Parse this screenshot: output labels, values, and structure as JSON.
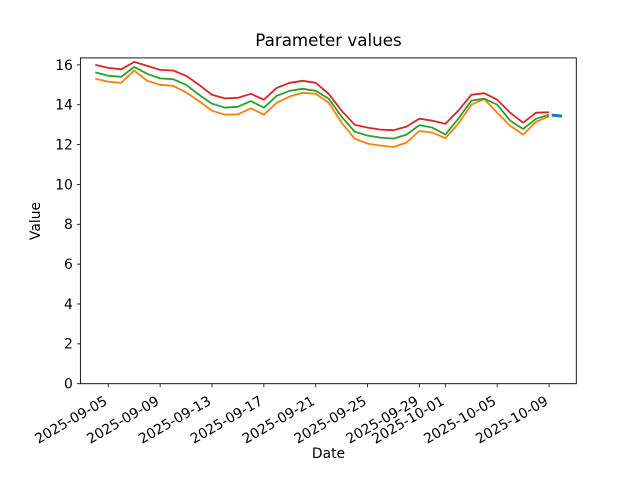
{
  "chart_data": {
    "type": "line",
    "title": "Parameter values",
    "xlabel": "Date",
    "ylabel": "Value",
    "grid": false,
    "legend": null,
    "background_color": "#ffffff",
    "ylim": [
      0,
      16.35
    ],
    "xlim_days": [
      -1.15,
      37.1
    ],
    "yticks": [
      {
        "label": "0",
        "value": 0
      },
      {
        "label": "2",
        "value": 2
      },
      {
        "label": "4",
        "value": 4
      },
      {
        "label": "6",
        "value": 6
      },
      {
        "label": "8",
        "value": 8
      },
      {
        "label": "10",
        "value": 10
      },
      {
        "label": "12",
        "value": 12
      },
      {
        "label": "14",
        "value": 14
      },
      {
        "label": "16",
        "value": 16
      }
    ],
    "xticks": [
      {
        "label": "2025-09-05",
        "day": 1
      },
      {
        "label": "2025-09-09",
        "day": 5
      },
      {
        "label": "2025-09-13",
        "day": 9
      },
      {
        "label": "2025-09-17",
        "day": 13
      },
      {
        "label": "2025-09-21",
        "day": 17
      },
      {
        "label": "2025-09-25",
        "day": 21
      },
      {
        "label": "2025-09-29",
        "day": 25
      },
      {
        "label": "2025-10-01",
        "day": 27
      },
      {
        "label": "2025-10-05",
        "day": 31
      },
      {
        "label": "2025-10-09",
        "day": 35
      }
    ],
    "dates": [
      "2025-09-04",
      "2025-09-05",
      "2025-09-06",
      "2025-09-07",
      "2025-09-08",
      "2025-09-09",
      "2025-09-10",
      "2025-09-11",
      "2025-09-12",
      "2025-09-13",
      "2025-09-14",
      "2025-09-15",
      "2025-09-16",
      "2025-09-17",
      "2025-09-18",
      "2025-09-19",
      "2025-09-20",
      "2025-09-21",
      "2025-09-22",
      "2025-09-23",
      "2025-09-24",
      "2025-09-25",
      "2025-09-26",
      "2025-09-27",
      "2025-09-28",
      "2025-09-29",
      "2025-09-30",
      "2025-10-01",
      "2025-10-02",
      "2025-10-03",
      "2025-10-04",
      "2025-10-05",
      "2025-10-06",
      "2025-10-07",
      "2025-10-08",
      "2025-10-09"
    ],
    "series": [
      {
        "name": "series-orange",
        "color": "#ff7f0e",
        "line_width": 1.8,
        "values": [
          15.3,
          15.15,
          15.1,
          15.72,
          15.2,
          15.0,
          14.95,
          14.62,
          14.18,
          13.7,
          13.5,
          13.52,
          13.82,
          13.5,
          14.1,
          14.42,
          14.6,
          14.55,
          14.1,
          13.1,
          12.3,
          12.05,
          11.95,
          11.88,
          12.1,
          12.68,
          12.6,
          12.32,
          13.05,
          14.0,
          14.28,
          13.6,
          12.95,
          12.5,
          13.15,
          13.42
        ]
      },
      {
        "name": "series-green",
        "color": "#2ca02c",
        "line_width": 1.8,
        "values": [
          15.62,
          15.45,
          15.4,
          15.9,
          15.55,
          15.32,
          15.28,
          15.0,
          14.5,
          14.05,
          13.85,
          13.9,
          14.18,
          13.85,
          14.45,
          14.7,
          14.8,
          14.7,
          14.3,
          13.4,
          12.65,
          12.45,
          12.35,
          12.3,
          12.5,
          12.98,
          12.85,
          12.5,
          13.3,
          14.2,
          14.3,
          14.0,
          13.2,
          12.78,
          13.3,
          13.5
        ]
      },
      {
        "name": "series-red",
        "color": "#d62728",
        "line_width": 1.8,
        "values": [
          16.0,
          15.85,
          15.78,
          16.15,
          15.95,
          15.75,
          15.72,
          15.45,
          15.0,
          14.5,
          14.32,
          14.35,
          14.55,
          14.25,
          14.85,
          15.1,
          15.2,
          15.1,
          14.55,
          13.7,
          13.0,
          12.85,
          12.75,
          12.72,
          12.9,
          13.3,
          13.2,
          13.05,
          13.7,
          14.5,
          14.58,
          14.25,
          13.6,
          13.1,
          13.6,
          13.62
        ]
      },
      {
        "name": "series-blue",
        "color": "#1f77b4",
        "line_width": 3,
        "x_days": [
          35.2,
          36
        ],
        "values": [
          13.48,
          13.43
        ]
      }
    ]
  }
}
